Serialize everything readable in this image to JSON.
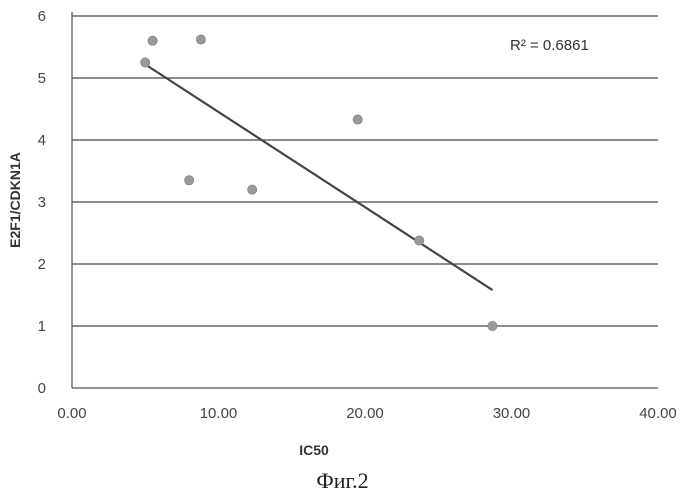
{
  "chart_data": {
    "type": "scatter",
    "xlabel": "IC50",
    "ylabel": "E2F1/CDKN1A",
    "xlim": [
      0,
      40
    ],
    "ylim": [
      0,
      6
    ],
    "xticks": [
      "0.00",
      "10.00",
      "20.00",
      "30.00",
      "40.00"
    ],
    "yticks": [
      "0",
      "1",
      "2",
      "3",
      "4",
      "5",
      "6"
    ],
    "grid": "horizontal",
    "series": [
      {
        "points": [
          {
            "x": 5.0,
            "y": 5.25
          },
          {
            "x": 5.5,
            "y": 5.6
          },
          {
            "x": 8.8,
            "y": 5.62
          },
          {
            "x": 8.0,
            "y": 3.35
          },
          {
            "x": 12.3,
            "y": 3.2
          },
          {
            "x": 19.5,
            "y": 4.33
          },
          {
            "x": 23.7,
            "y": 2.38
          },
          {
            "x": 28.7,
            "y": 1.0
          }
        ]
      }
    ],
    "trendline": {
      "x": [
        5.0,
        28.7
      ],
      "y": [
        5.22,
        1.58
      ]
    },
    "annotation": "R² = 0.6861",
    "caption": "Фиг.2",
    "colors": {
      "points": "#9a9a9a",
      "trendline": "#444444",
      "grid": "#666666"
    }
  }
}
